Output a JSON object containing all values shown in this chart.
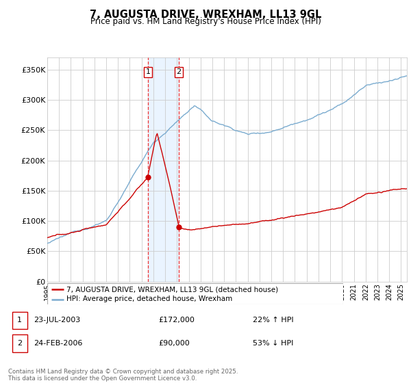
{
  "title": "7, AUGUSTA DRIVE, WREXHAM, LL13 9GL",
  "subtitle": "Price paid vs. HM Land Registry's House Price Index (HPI)",
  "ylabel_ticks": [
    "£0",
    "£50K",
    "£100K",
    "£150K",
    "£200K",
    "£250K",
    "£300K",
    "£350K"
  ],
  "ylim": [
    0,
    370000
  ],
  "xlim_start": 1995.0,
  "xlim_end": 2025.5,
  "legend_line1": "7, AUGUSTA DRIVE, WREXHAM, LL13 9GL (detached house)",
  "legend_line2": "HPI: Average price, detached house, Wrexham",
  "transaction1_date": "23-JUL-2003",
  "transaction1_price": "£172,000",
  "transaction1_hpi": "22% ↑ HPI",
  "transaction1_year": 2003.55,
  "transaction1_value": 172000,
  "transaction2_date": "24-FEB-2006",
  "transaction2_price": "£90,000",
  "transaction2_hpi": "53% ↓ HPI",
  "transaction2_year": 2006.15,
  "transaction2_value": 90000,
  "footnote": "Contains HM Land Registry data © Crown copyright and database right 2025.\nThis data is licensed under the Open Government Licence v3.0.",
  "line_color_red": "#cc0000",
  "line_color_blue": "#7aabcf",
  "background_color": "#ffffff",
  "grid_color": "#cccccc",
  "shade_color": "#ddeeff",
  "dashed_line_color": "#ee3333"
}
